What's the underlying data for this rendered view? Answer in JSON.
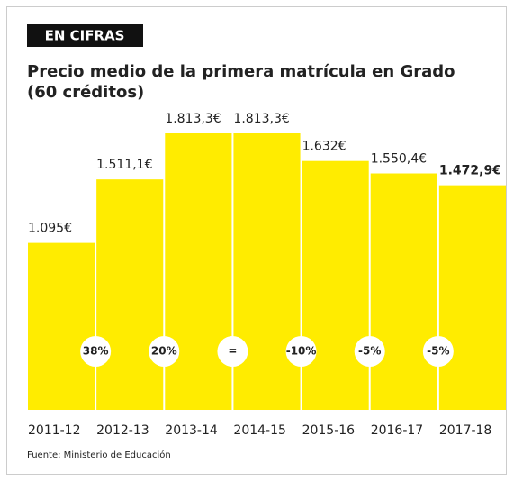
{
  "chart_data": {
    "type": "bar",
    "tag": "EN CIFRAS",
    "title": "Precio medio de la primera matrícula en Grado",
    "subtitle": "(60 créditos)",
    "categories": [
      "2011-12",
      "2012-13",
      "2013-14",
      "2014-15",
      "2015-16",
      "2016-17",
      "2017-18"
    ],
    "values": [
      1095,
      1511.1,
      1813.3,
      1813.3,
      1632,
      1550.4,
      1472.9
    ],
    "value_labels": [
      "1.095€",
      "1.511,1€",
      "1.813,3€",
      "1.813,3€",
      "1.632€",
      "1.550,4€",
      "1.472,9€"
    ],
    "changes": [
      "38%",
      "20%",
      "=",
      "-10%",
      "-5%",
      "-5%"
    ],
    "color": "#ffec00",
    "source": "Fuente: Ministerio de Educación"
  }
}
